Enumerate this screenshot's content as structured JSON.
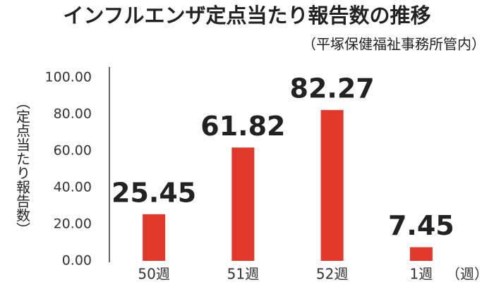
{
  "chart_data": {
    "type": "bar",
    "title": "インフルエンザ定点当たり報告数の推移",
    "subtitle": "（平塚保健福祉事務所管内）",
    "y_label": "（定点当たり報告数）",
    "x_label": "（週）",
    "categories": [
      "50週",
      "51週",
      "52週",
      "1週"
    ],
    "values": [
      25.45,
      61.82,
      82.27,
      7.45
    ],
    "color": "#e0392b",
    "ylim": [
      0,
      100
    ],
    "yticks": [
      {
        "value": 0,
        "label": "0.00"
      },
      {
        "value": 20,
        "label": "20.00"
      },
      {
        "value": 40,
        "label": "40.00"
      },
      {
        "value": 60,
        "label": "60.00"
      },
      {
        "value": 80,
        "label": "80.00"
      },
      {
        "value": 100,
        "label": "100.00"
      }
    ],
    "grid": false
  }
}
